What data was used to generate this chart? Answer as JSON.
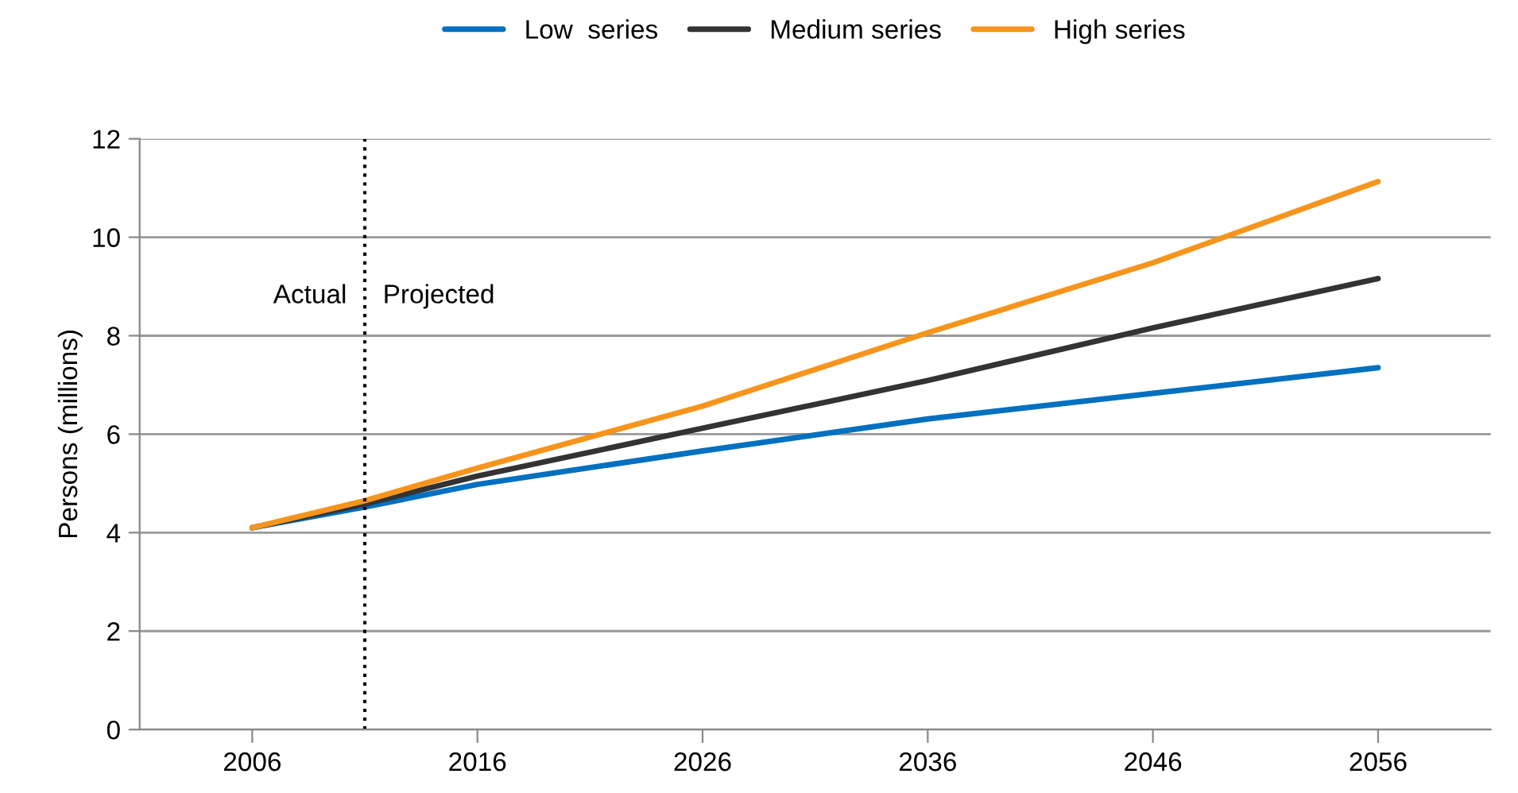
{
  "chart_data": {
    "type": "line",
    "ylabel": "Persons (millions)",
    "x": [
      2006,
      2011,
      2016,
      2026,
      2036,
      2046,
      2056
    ],
    "series": [
      {
        "name": "Low  series",
        "color": "#0070c0",
        "values": [
          4.1,
          4.52,
          4.98,
          5.66,
          6.31,
          6.83,
          7.35
        ]
      },
      {
        "name": "Medium series",
        "color": "#333333",
        "values": [
          4.1,
          4.58,
          5.15,
          6.12,
          7.09,
          8.16,
          9.16
        ]
      },
      {
        "name": "High series",
        "color": "#f7941d",
        "values": [
          4.1,
          4.65,
          5.31,
          6.57,
          8.06,
          9.48,
          11.13
        ]
      }
    ],
    "xlim": [
      2001,
      2061
    ],
    "xticks": [
      2006,
      2016,
      2026,
      2036,
      2046,
      2056
    ],
    "ylim": [
      0,
      12
    ],
    "yticks": [
      0,
      2,
      4,
      6,
      8,
      10,
      12
    ],
    "grid": "y",
    "legend": "top",
    "marker": "none",
    "line_style": "solid",
    "ref_lines": [
      {
        "axis": "x",
        "value": 2011,
        "label": null,
        "color": "#000000",
        "line_style": "dotted"
      }
    ],
    "annotations": [
      "Actual",
      "Projected"
    ]
  }
}
